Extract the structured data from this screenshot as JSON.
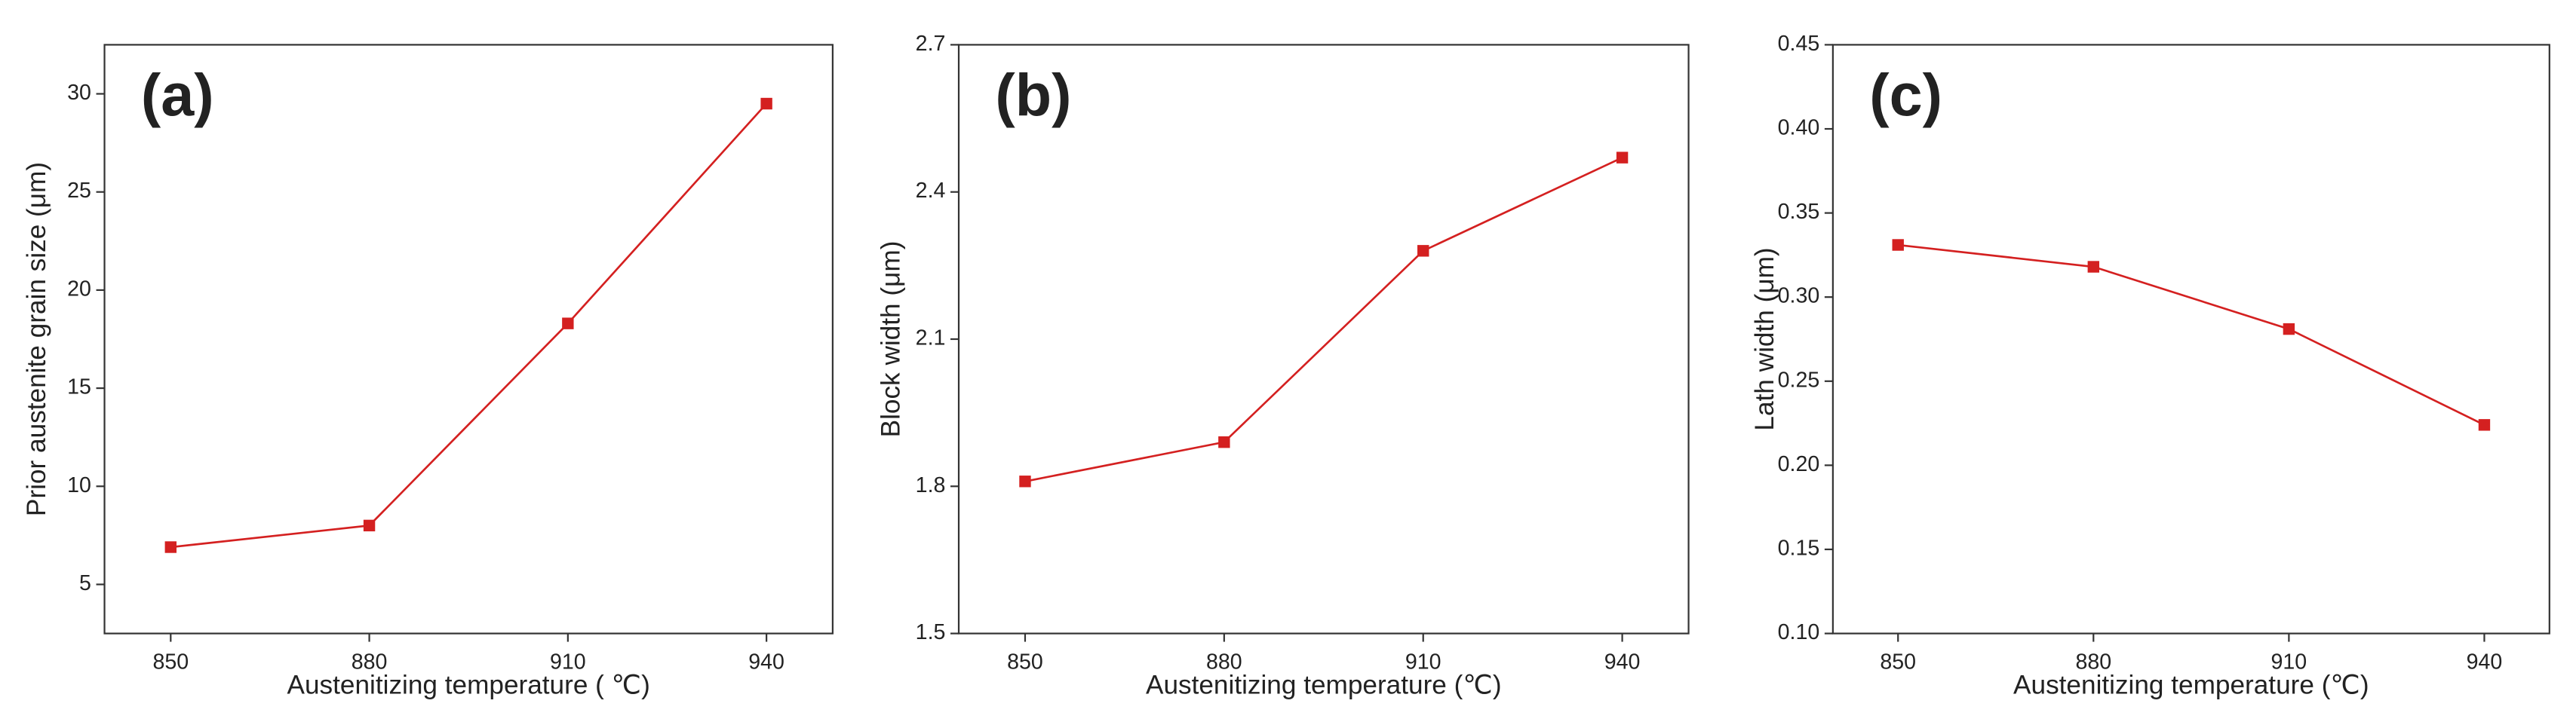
{
  "chart_data": [
    {
      "type": "line",
      "annotation": "(a)",
      "x_label": "Austenitizing temperature ( ℃)",
      "y_label": "Prior austenite grain size (μm)",
      "x": [
        850,
        880,
        910,
        940
      ],
      "xlim": [
        840,
        950
      ],
      "xticks": [
        850,
        880,
        910,
        940
      ],
      "ylim": [
        2.5,
        32.5
      ],
      "yticks": [
        5,
        10,
        15,
        20,
        25,
        30
      ],
      "series": [
        {
          "color": "#d42020",
          "values": [
            6.9,
            8.0,
            18.3,
            29.5
          ]
        }
      ]
    },
    {
      "type": "line",
      "annotation": "(b)",
      "x_label": "Austenitizing temperature (℃)",
      "y_label": "Block width (μm)",
      "x": [
        850,
        880,
        910,
        940
      ],
      "xlim": [
        840,
        950
      ],
      "xticks": [
        850,
        880,
        910,
        940
      ],
      "ylim": [
        1.5,
        2.7
      ],
      "yticks": [
        1.5,
        1.8,
        2.1,
        2.4,
        2.7
      ],
      "series": [
        {
          "color": "#d42020",
          "values": [
            1.81,
            1.89,
            2.28,
            2.47
          ]
        }
      ]
    },
    {
      "type": "line",
      "annotation": "(c)",
      "x_label": "Austenitizing temperature (℃)",
      "y_label": "Lath width (μm)",
      "x": [
        850,
        880,
        910,
        940
      ],
      "xlim": [
        840,
        950
      ],
      "xticks": [
        850,
        880,
        910,
        940
      ],
      "ylim": [
        0.1,
        0.45
      ],
      "yticks": [
        {
          "value": 0.1,
          "label": "0.10"
        },
        0.15,
        {
          "value": 0.2,
          "label": "0.20"
        },
        0.25,
        {
          "value": 0.3,
          "label": "0.30"
        },
        0.35,
        {
          "value": 0.4,
          "label": "0.40"
        },
        0.45
      ],
      "series": [
        {
          "color": "#d42020",
          "values": [
            0.331,
            0.318,
            0.281,
            0.224
          ]
        }
      ]
    }
  ]
}
